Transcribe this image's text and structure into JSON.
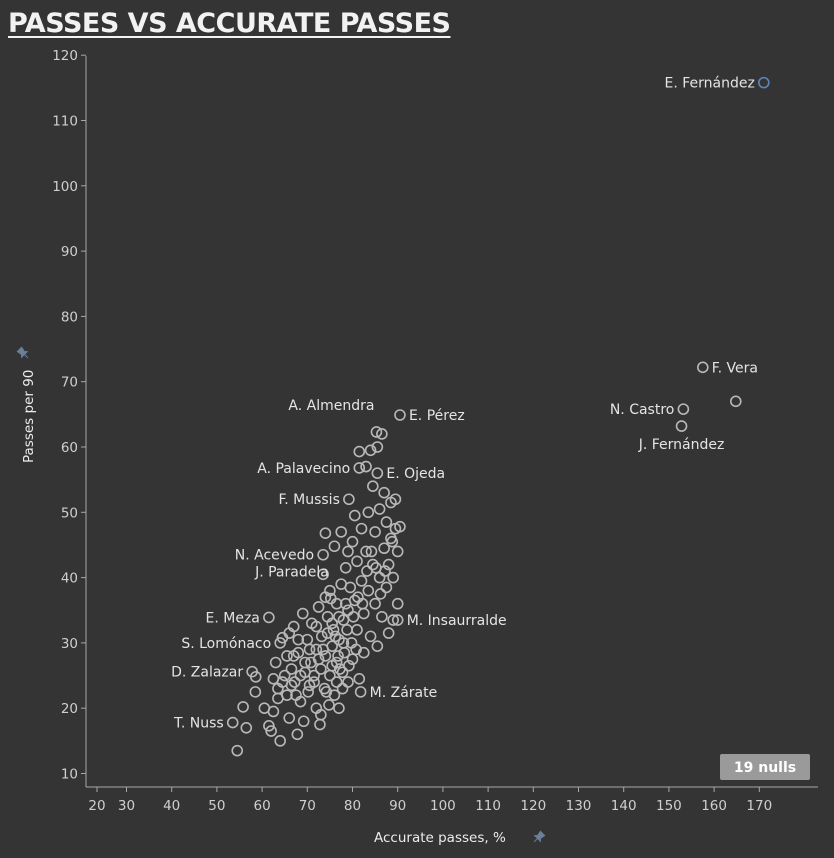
{
  "title": "PASSES VS ACCURATE PASSES",
  "nulls_badge": "19 nulls",
  "icons": {
    "axis_pin": "pin-icon"
  },
  "colors": {
    "background": "#343434",
    "point": "#b8b8b8",
    "highlight": "#5a86b8",
    "text": "#e4e4e4"
  },
  "chart_data": {
    "type": "scatter",
    "title": "PASSES VS ACCURATE PASSES",
    "xlabel": "Accurate passes, %",
    "ylabel": "Passes per 90",
    "xticks": [
      20,
      30,
      40,
      50,
      60,
      70,
      80,
      90,
      100,
      110,
      120,
      130,
      140,
      150,
      160,
      170
    ],
    "yticks": [
      10,
      20,
      30,
      40,
      50,
      60,
      70,
      80,
      90,
      100,
      110,
      120
    ],
    "xlim": [
      18,
      178
    ],
    "ylim": [
      9,
      123
    ],
    "grid": false,
    "labeled_points": [
      {
        "name": "E. Fernández",
        "x": 171,
        "y": 115.8,
        "highlight": true,
        "side": "left"
      },
      {
        "name": "F. Vera",
        "x": 157.5,
        "y": 72.2,
        "side": "right"
      },
      {
        "name": "N. Castro",
        "x": 153.2,
        "y": 65.8,
        "side": "left"
      },
      {
        "name": "J. Fernández",
        "x": 152.8,
        "y": 63.2,
        "side": "below"
      },
      {
        "name": "A. Almendra",
        "x": 85.3,
        "y": 62.3,
        "side": "above-left"
      },
      {
        "name": "E. Pérez",
        "x": 90.5,
        "y": 64.9,
        "side": "right"
      },
      {
        "name": "A. Palavecino",
        "x": 81.5,
        "y": 56.8,
        "side": "left"
      },
      {
        "name": "E. Ojeda",
        "x": 85.5,
        "y": 56.0,
        "side": "right"
      },
      {
        "name": "F. Mussis",
        "x": 79.2,
        "y": 52.0,
        "side": "left"
      },
      {
        "name": "N. Acevedo",
        "x": 73.5,
        "y": 43.5,
        "side": "left"
      },
      {
        "name": "J. Paradela",
        "x": 75.2,
        "y": 36.8,
        "side": "above-left"
      },
      {
        "name": "E. Meza",
        "x": 61.5,
        "y": 33.9,
        "side": "left"
      },
      {
        "name": "M. Insaurralde",
        "x": 90.0,
        "y": 33.5,
        "side": "right"
      },
      {
        "name": "S. Lomónaco",
        "x": 64.0,
        "y": 30.0,
        "side": "left"
      },
      {
        "name": "D. Zalazar",
        "x": 57.8,
        "y": 25.6,
        "side": "left"
      },
      {
        "name": "M. Zárate",
        "x": 81.8,
        "y": 22.5,
        "side": "right"
      },
      {
        "name": "T. Nuss",
        "x": 53.5,
        "y": 17.8,
        "side": "left"
      }
    ],
    "points": [
      {
        "x": 164.8,
        "y": 67.0
      },
      {
        "x": 54.5,
        "y": 13.5
      },
      {
        "x": 56.5,
        "y": 17.0
      },
      {
        "x": 55.8,
        "y": 20.2
      },
      {
        "x": 58.5,
        "y": 22.5
      },
      {
        "x": 58.6,
        "y": 24.8
      },
      {
        "x": 60.5,
        "y": 20.0
      },
      {
        "x": 61.5,
        "y": 17.3
      },
      {
        "x": 62.0,
        "y": 16.5
      },
      {
        "x": 62.5,
        "y": 24.5
      },
      {
        "x": 63.0,
        "y": 27.0
      },
      {
        "x": 63.5,
        "y": 21.5
      },
      {
        "x": 64.0,
        "y": 15.0
      },
      {
        "x": 64.5,
        "y": 30.8
      },
      {
        "x": 65.0,
        "y": 25.0
      },
      {
        "x": 65.5,
        "y": 22.0
      },
      {
        "x": 66.0,
        "y": 18.5
      },
      {
        "x": 66.5,
        "y": 26.0
      },
      {
        "x": 67.0,
        "y": 32.5
      },
      {
        "x": 67.2,
        "y": 24.0
      },
      {
        "x": 67.8,
        "y": 16.0
      },
      {
        "x": 68.0,
        "y": 28.5
      },
      {
        "x": 68.5,
        "y": 21.0
      },
      {
        "x": 69.0,
        "y": 34.5
      },
      {
        "x": 69.2,
        "y": 18.0
      },
      {
        "x": 69.5,
        "y": 25.5
      },
      {
        "x": 70.0,
        "y": 30.5
      },
      {
        "x": 70.2,
        "y": 22.5
      },
      {
        "x": 70.8,
        "y": 27.0
      },
      {
        "x": 71.0,
        "y": 33.0
      },
      {
        "x": 71.5,
        "y": 24.0
      },
      {
        "x": 72.0,
        "y": 20.0
      },
      {
        "x": 72.0,
        "y": 29.0
      },
      {
        "x": 72.5,
        "y": 35.5
      },
      {
        "x": 72.8,
        "y": 17.5
      },
      {
        "x": 73.0,
        "y": 26.0
      },
      {
        "x": 73.2,
        "y": 31.0
      },
      {
        "x": 73.5,
        "y": 40.5
      },
      {
        "x": 73.8,
        "y": 23.0
      },
      {
        "x": 74.0,
        "y": 28.0
      },
      {
        "x": 74.0,
        "y": 46.8
      },
      {
        "x": 74.5,
        "y": 34.0
      },
      {
        "x": 74.8,
        "y": 20.5
      },
      {
        "x": 75.0,
        "y": 25.0
      },
      {
        "x": 75.0,
        "y": 38.0
      },
      {
        "x": 75.5,
        "y": 29.5
      },
      {
        "x": 75.8,
        "y": 32.0
      },
      {
        "x": 76.0,
        "y": 44.8
      },
      {
        "x": 76.0,
        "y": 22.0
      },
      {
        "x": 76.5,
        "y": 27.0
      },
      {
        "x": 76.5,
        "y": 36.0
      },
      {
        "x": 77.0,
        "y": 30.5
      },
      {
        "x": 77.0,
        "y": 20.0
      },
      {
        "x": 77.5,
        "y": 39.0
      },
      {
        "x": 77.5,
        "y": 47.0
      },
      {
        "x": 77.8,
        "y": 25.5
      },
      {
        "x": 78.0,
        "y": 33.5
      },
      {
        "x": 78.2,
        "y": 28.5
      },
      {
        "x": 78.5,
        "y": 41.5
      },
      {
        "x": 79.0,
        "y": 35.0
      },
      {
        "x": 79.0,
        "y": 24.0
      },
      {
        "x": 79.5,
        "y": 38.5
      },
      {
        "x": 79.8,
        "y": 30.0
      },
      {
        "x": 80.0,
        "y": 45.5
      },
      {
        "x": 80.0,
        "y": 27.5
      },
      {
        "x": 80.5,
        "y": 49.5
      },
      {
        "x": 80.5,
        "y": 36.5
      },
      {
        "x": 81.0,
        "y": 42.5
      },
      {
        "x": 81.0,
        "y": 32.0
      },
      {
        "x": 81.5,
        "y": 24.5
      },
      {
        "x": 81.5,
        "y": 59.3
      },
      {
        "x": 82.0,
        "y": 39.5
      },
      {
        "x": 82.0,
        "y": 47.5
      },
      {
        "x": 82.5,
        "y": 34.5
      },
      {
        "x": 82.5,
        "y": 28.5
      },
      {
        "x": 83.0,
        "y": 44.0
      },
      {
        "x": 83.0,
        "y": 57.0
      },
      {
        "x": 83.5,
        "y": 38.0
      },
      {
        "x": 83.5,
        "y": 50.0
      },
      {
        "x": 84.0,
        "y": 31.0
      },
      {
        "x": 84.0,
        "y": 59.5
      },
      {
        "x": 84.5,
        "y": 42.0
      },
      {
        "x": 84.5,
        "y": 54.0
      },
      {
        "x": 85.0,
        "y": 36.0
      },
      {
        "x": 85.0,
        "y": 47.0
      },
      {
        "x": 85.5,
        "y": 60.0
      },
      {
        "x": 85.5,
        "y": 29.5
      },
      {
        "x": 86.0,
        "y": 40.0
      },
      {
        "x": 86.0,
        "y": 50.5
      },
      {
        "x": 86.5,
        "y": 62.0
      },
      {
        "x": 86.5,
        "y": 34.0
      },
      {
        "x": 87.0,
        "y": 44.5
      },
      {
        "x": 87.0,
        "y": 53.0
      },
      {
        "x": 87.5,
        "y": 38.5
      },
      {
        "x": 87.5,
        "y": 48.5
      },
      {
        "x": 88.0,
        "y": 31.5
      },
      {
        "x": 88.0,
        "y": 42.0
      },
      {
        "x": 88.5,
        "y": 46.0
      },
      {
        "x": 88.5,
        "y": 51.5
      },
      {
        "x": 89.0,
        "y": 40.0
      },
      {
        "x": 89.0,
        "y": 33.5
      },
      {
        "x": 89.5,
        "y": 47.5
      },
      {
        "x": 89.5,
        "y": 52.0
      },
      {
        "x": 90.0,
        "y": 44.0
      },
      {
        "x": 90.0,
        "y": 36.0
      },
      {
        "x": 90.5,
        "y": 47.8
      },
      {
        "x": 88.8,
        "y": 45.5
      },
      {
        "x": 79.0,
        "y": 44.0
      },
      {
        "x": 78.5,
        "y": 36.0
      },
      {
        "x": 77.0,
        "y": 34.0
      },
      {
        "x": 76.8,
        "y": 28.0
      },
      {
        "x": 75.5,
        "y": 26.5
      },
      {
        "x": 74.5,
        "y": 31.5
      },
      {
        "x": 73.5,
        "y": 29.0
      },
      {
        "x": 72.5,
        "y": 27.5
      },
      {
        "x": 71.5,
        "y": 25.0
      },
      {
        "x": 70.5,
        "y": 23.5
      },
      {
        "x": 69.5,
        "y": 27.0
      },
      {
        "x": 68.5,
        "y": 25.0
      },
      {
        "x": 67.5,
        "y": 22.0
      },
      {
        "x": 66.5,
        "y": 23.5
      },
      {
        "x": 65.5,
        "y": 28.0
      },
      {
        "x": 64.5,
        "y": 24.0
      },
      {
        "x": 63.5,
        "y": 23.0
      },
      {
        "x": 62.5,
        "y": 19.5
      },
      {
        "x": 77.2,
        "y": 26.0
      },
      {
        "x": 76.2,
        "y": 31.0
      },
      {
        "x": 78.8,
        "y": 32.0
      },
      {
        "x": 80.2,
        "y": 34.0
      },
      {
        "x": 81.2,
        "y": 37.0
      },
      {
        "x": 82.2,
        "y": 36.0
      },
      {
        "x": 83.2,
        "y": 41.0
      },
      {
        "x": 84.2,
        "y": 44.0
      },
      {
        "x": 85.2,
        "y": 41.5
      },
      {
        "x": 86.2,
        "y": 37.5
      },
      {
        "x": 87.2,
        "y": 41.0
      },
      {
        "x": 80.8,
        "y": 29.0
      },
      {
        "x": 79.2,
        "y": 26.5
      },
      {
        "x": 77.8,
        "y": 23.0
      },
      {
        "x": 76.5,
        "y": 24.0
      },
      {
        "x": 74.2,
        "y": 22.5
      },
      {
        "x": 73.0,
        "y": 19.0
      },
      {
        "x": 75.5,
        "y": 33.0
      },
      {
        "x": 78.0,
        "y": 30.0
      },
      {
        "x": 74.0,
        "y": 37.0
      },
      {
        "x": 72.0,
        "y": 32.5
      },
      {
        "x": 70.5,
        "y": 29.0
      },
      {
        "x": 68.0,
        "y": 30.5
      },
      {
        "x": 67.0,
        "y": 28.0
      },
      {
        "x": 66.0,
        "y": 31.5
      }
    ]
  }
}
